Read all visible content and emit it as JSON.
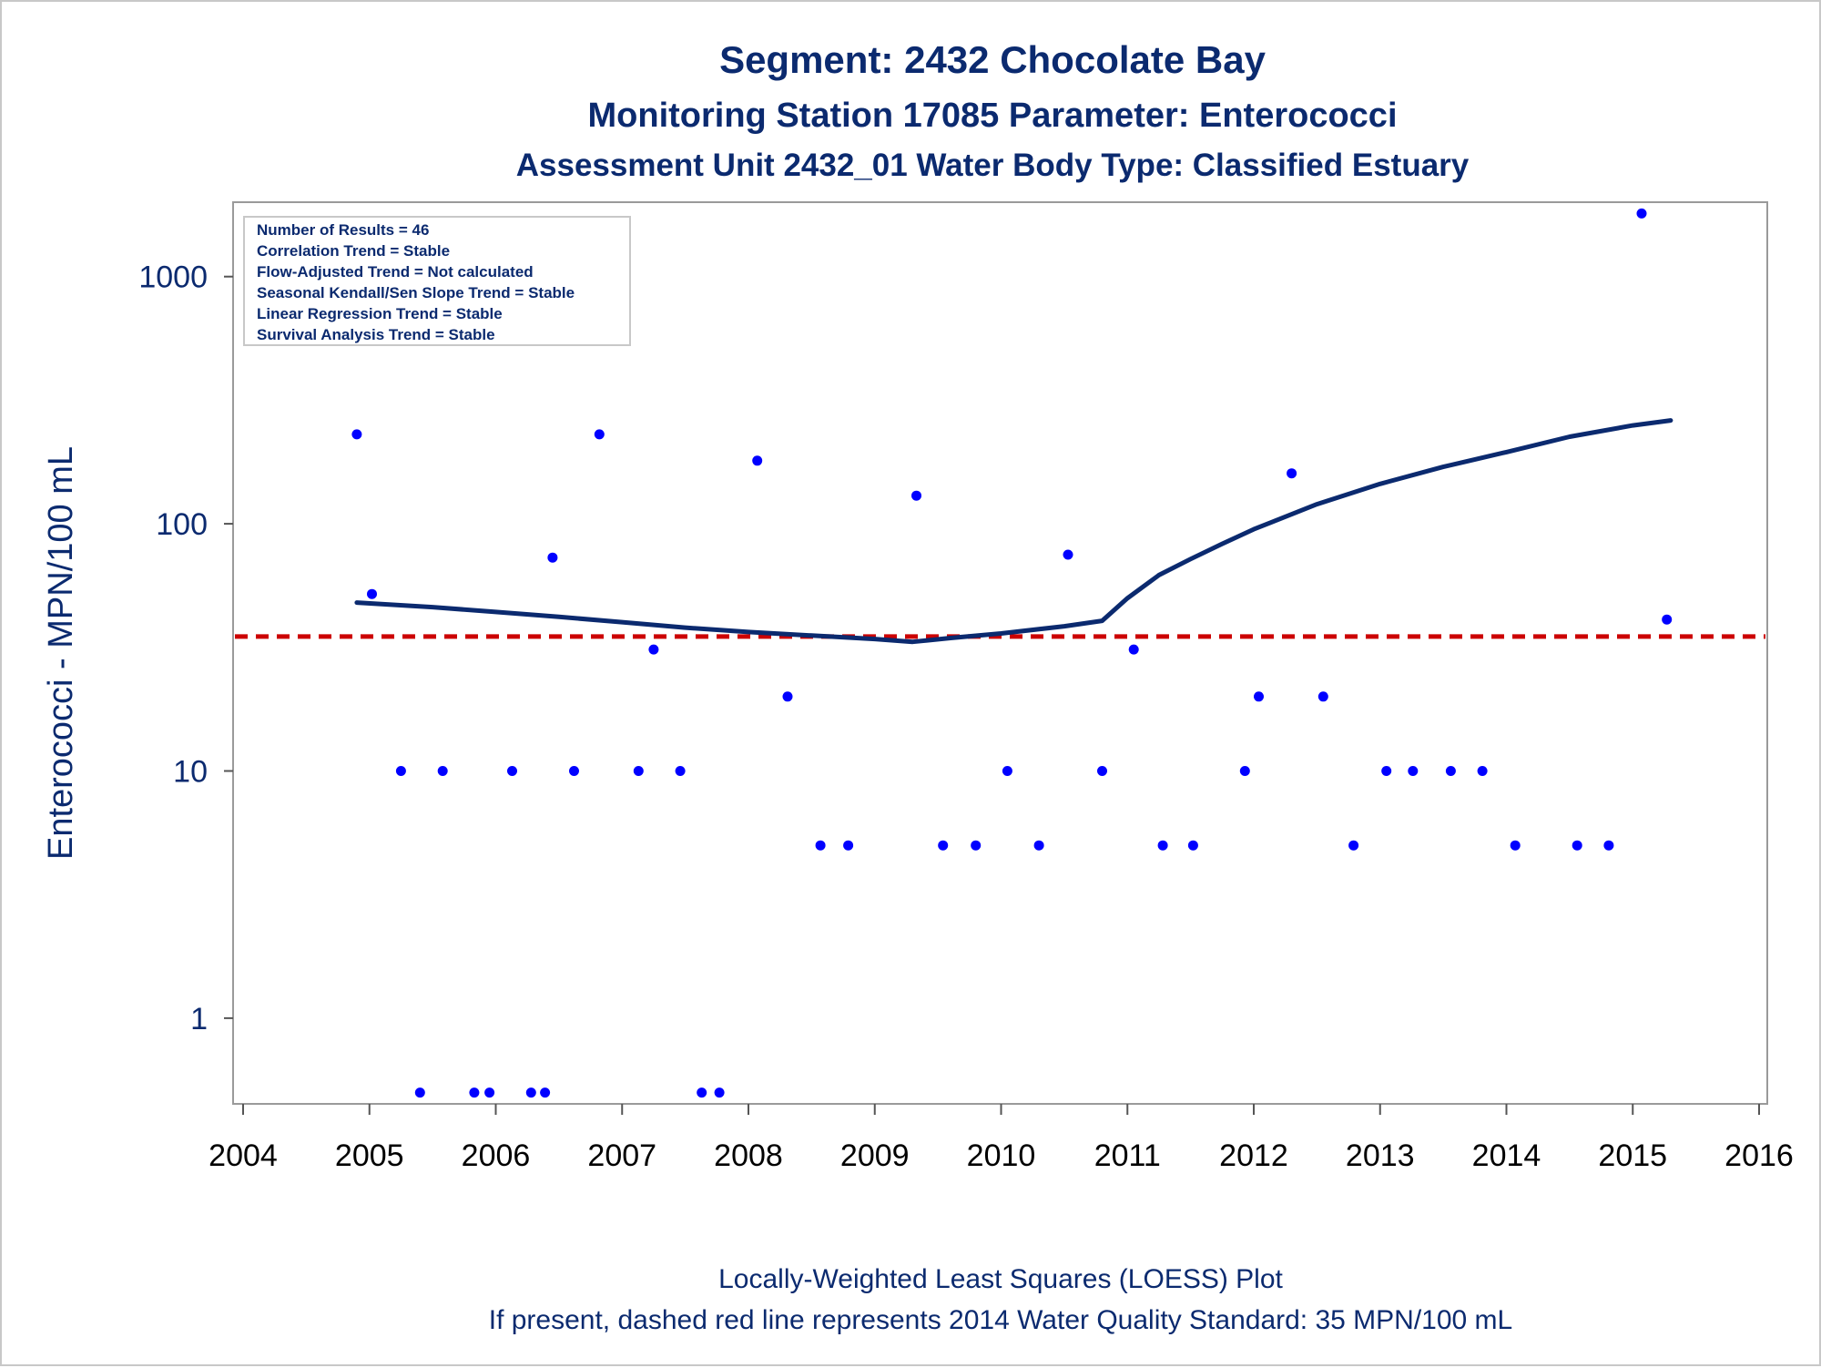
{
  "titles": {
    "line1": "Segment: 2432  Chocolate Bay",
    "line2": "Monitoring Station 17085 Parameter: Enterococci",
    "line3": "Assessment Unit 2432_01   Water Body Type: Classified Estuary"
  },
  "stats_box": [
    "Number of Results = 46",
    "Correlation Trend = Stable",
    "Flow-Adjusted Trend = Not calculated",
    "Seasonal Kendall/Sen Slope Trend = Stable",
    "Linear Regression Trend = Stable",
    "Survival Analysis Trend = Stable"
  ],
  "footnotes": {
    "line1": "Locally-Weighted Least Squares (LOESS) Plot",
    "line2": "If present, dashed red line represents 2014 Water Quality Standard: 35 MPN/100 mL"
  },
  "colors": {
    "title": "#0b2a6f",
    "points": "#0000ff",
    "loess": "#0b2a6f",
    "standard_line": "#cc0000",
    "plot_border": "#9a9a9a"
  },
  "chart_data": {
    "type": "scatter",
    "ylabel": "Enterococci - MPN/100 mL",
    "xlabel": "",
    "yscale": "log",
    "xlim": [
      2004,
      2016
    ],
    "ylim": [
      0.45,
      2000
    ],
    "x_ticks": [
      "2004",
      "2005",
      "2006",
      "2007",
      "2008",
      "2009",
      "2010",
      "2011",
      "2012",
      "2013",
      "2014",
      "2015",
      "2016"
    ],
    "y_ticks": [
      "1",
      "10",
      "100",
      "1000"
    ],
    "grid": false,
    "standard_line": {
      "value": 35,
      "style": "dashed"
    },
    "points": [
      [
        2004.9,
        230
      ],
      [
        2005.02,
        52
      ],
      [
        2005.25,
        10
      ],
      [
        2005.4,
        0.5
      ],
      [
        2005.58,
        10
      ],
      [
        2005.83,
        0.5
      ],
      [
        2005.95,
        0.5
      ],
      [
        2006.13,
        10
      ],
      [
        2006.28,
        0.5
      ],
      [
        2006.39,
        0.5
      ],
      [
        2006.45,
        73
      ],
      [
        2006.62,
        10
      ],
      [
        2006.82,
        230
      ],
      [
        2007.13,
        10
      ],
      [
        2007.25,
        31
      ],
      [
        2007.46,
        10
      ],
      [
        2007.63,
        0.5
      ],
      [
        2007.77,
        0.5
      ],
      [
        2008.07,
        180
      ],
      [
        2008.31,
        20
      ],
      [
        2008.57,
        5
      ],
      [
        2008.79,
        5
      ],
      [
        2009.33,
        130
      ],
      [
        2009.54,
        5
      ],
      [
        2009.8,
        5
      ],
      [
        2010.05,
        10
      ],
      [
        2010.3,
        5
      ],
      [
        2010.53,
        75
      ],
      [
        2010.8,
        10
      ],
      [
        2011.05,
        31
      ],
      [
        2011.28,
        5
      ],
      [
        2011.52,
        5
      ],
      [
        2011.93,
        10
      ],
      [
        2012.04,
        20
      ],
      [
        2012.3,
        160
      ],
      [
        2012.55,
        20
      ],
      [
        2012.79,
        5
      ],
      [
        2013.05,
        10
      ],
      [
        2013.26,
        10
      ],
      [
        2013.56,
        10
      ],
      [
        2013.81,
        10
      ],
      [
        2014.07,
        5
      ],
      [
        2014.56,
        5
      ],
      [
        2014.81,
        5
      ],
      [
        2015.07,
        1800
      ],
      [
        2015.27,
        41
      ]
    ],
    "loess": [
      [
        2004.9,
        48
      ],
      [
        2005.5,
        46
      ],
      [
        2006.0,
        44
      ],
      [
        2006.5,
        42
      ],
      [
        2007.0,
        40
      ],
      [
        2007.5,
        38
      ],
      [
        2008.0,
        36.5
      ],
      [
        2008.5,
        35.3
      ],
      [
        2009.0,
        34.2
      ],
      [
        2009.3,
        33.3
      ],
      [
        2009.6,
        34.5
      ],
      [
        2010.0,
        36
      ],
      [
        2010.5,
        38.5
      ],
      [
        2010.8,
        40.5
      ],
      [
        2011.0,
        50
      ],
      [
        2011.25,
        62
      ],
      [
        2011.5,
        72
      ],
      [
        2011.75,
        83
      ],
      [
        2012.0,
        95
      ],
      [
        2012.5,
        120
      ],
      [
        2013.0,
        145
      ],
      [
        2013.5,
        170
      ],
      [
        2014.0,
        195
      ],
      [
        2014.5,
        225
      ],
      [
        2015.0,
        250
      ],
      [
        2015.3,
        262
      ]
    ]
  }
}
